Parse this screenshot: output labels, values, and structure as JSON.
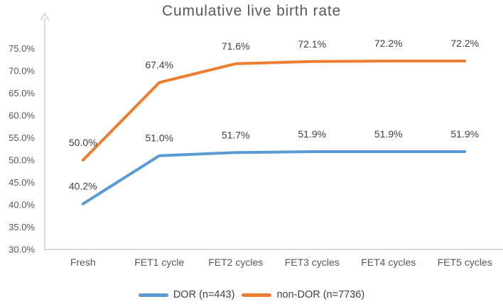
{
  "chart_data": {
    "type": "line",
    "title": "Cumulative live birth rate",
    "categories": [
      "Fresh",
      "FET1 cycle",
      "FET2 cycles",
      "FET3 cycles",
      "FET4 cycles",
      "FET5 cycles"
    ],
    "series": [
      {
        "name": "DOR (n=443)",
        "color": "#5B9BD5",
        "values": [
          40.2,
          51.0,
          51.7,
          51.9,
          51.9,
          51.9
        ],
        "labels": [
          "40.2%",
          "51.0%",
          "51.7%",
          "51.9%",
          "51.9%",
          "51.9%"
        ]
      },
      {
        "name": "non-DOR (n=7736)",
        "color": "#ED7D31",
        "values": [
          50.0,
          67.4,
          71.6,
          72.1,
          72.2,
          72.2
        ],
        "labels": [
          "50.0%",
          "67.4%",
          "71.6%",
          "72.1%",
          "72.2%",
          "72.2%"
        ]
      }
    ],
    "y_axis": {
      "min": 30,
      "max": 75,
      "tick_step": 5,
      "tick_labels": [
        "30.0%",
        "35.0%",
        "40.0%",
        "45.0%",
        "50.0%",
        "55.0%",
        "60.0%",
        "65.0%",
        "70.0%",
        "75.0%"
      ]
    },
    "x_axis": {
      "label": ""
    },
    "legend_position": "bottom",
    "grid": false,
    "data_labels": true,
    "colors": {
      "axis_line": "#D6D6D6",
      "title_text": "#595959",
      "axis_text": "#595959",
      "data_label_text": "#404040"
    }
  }
}
